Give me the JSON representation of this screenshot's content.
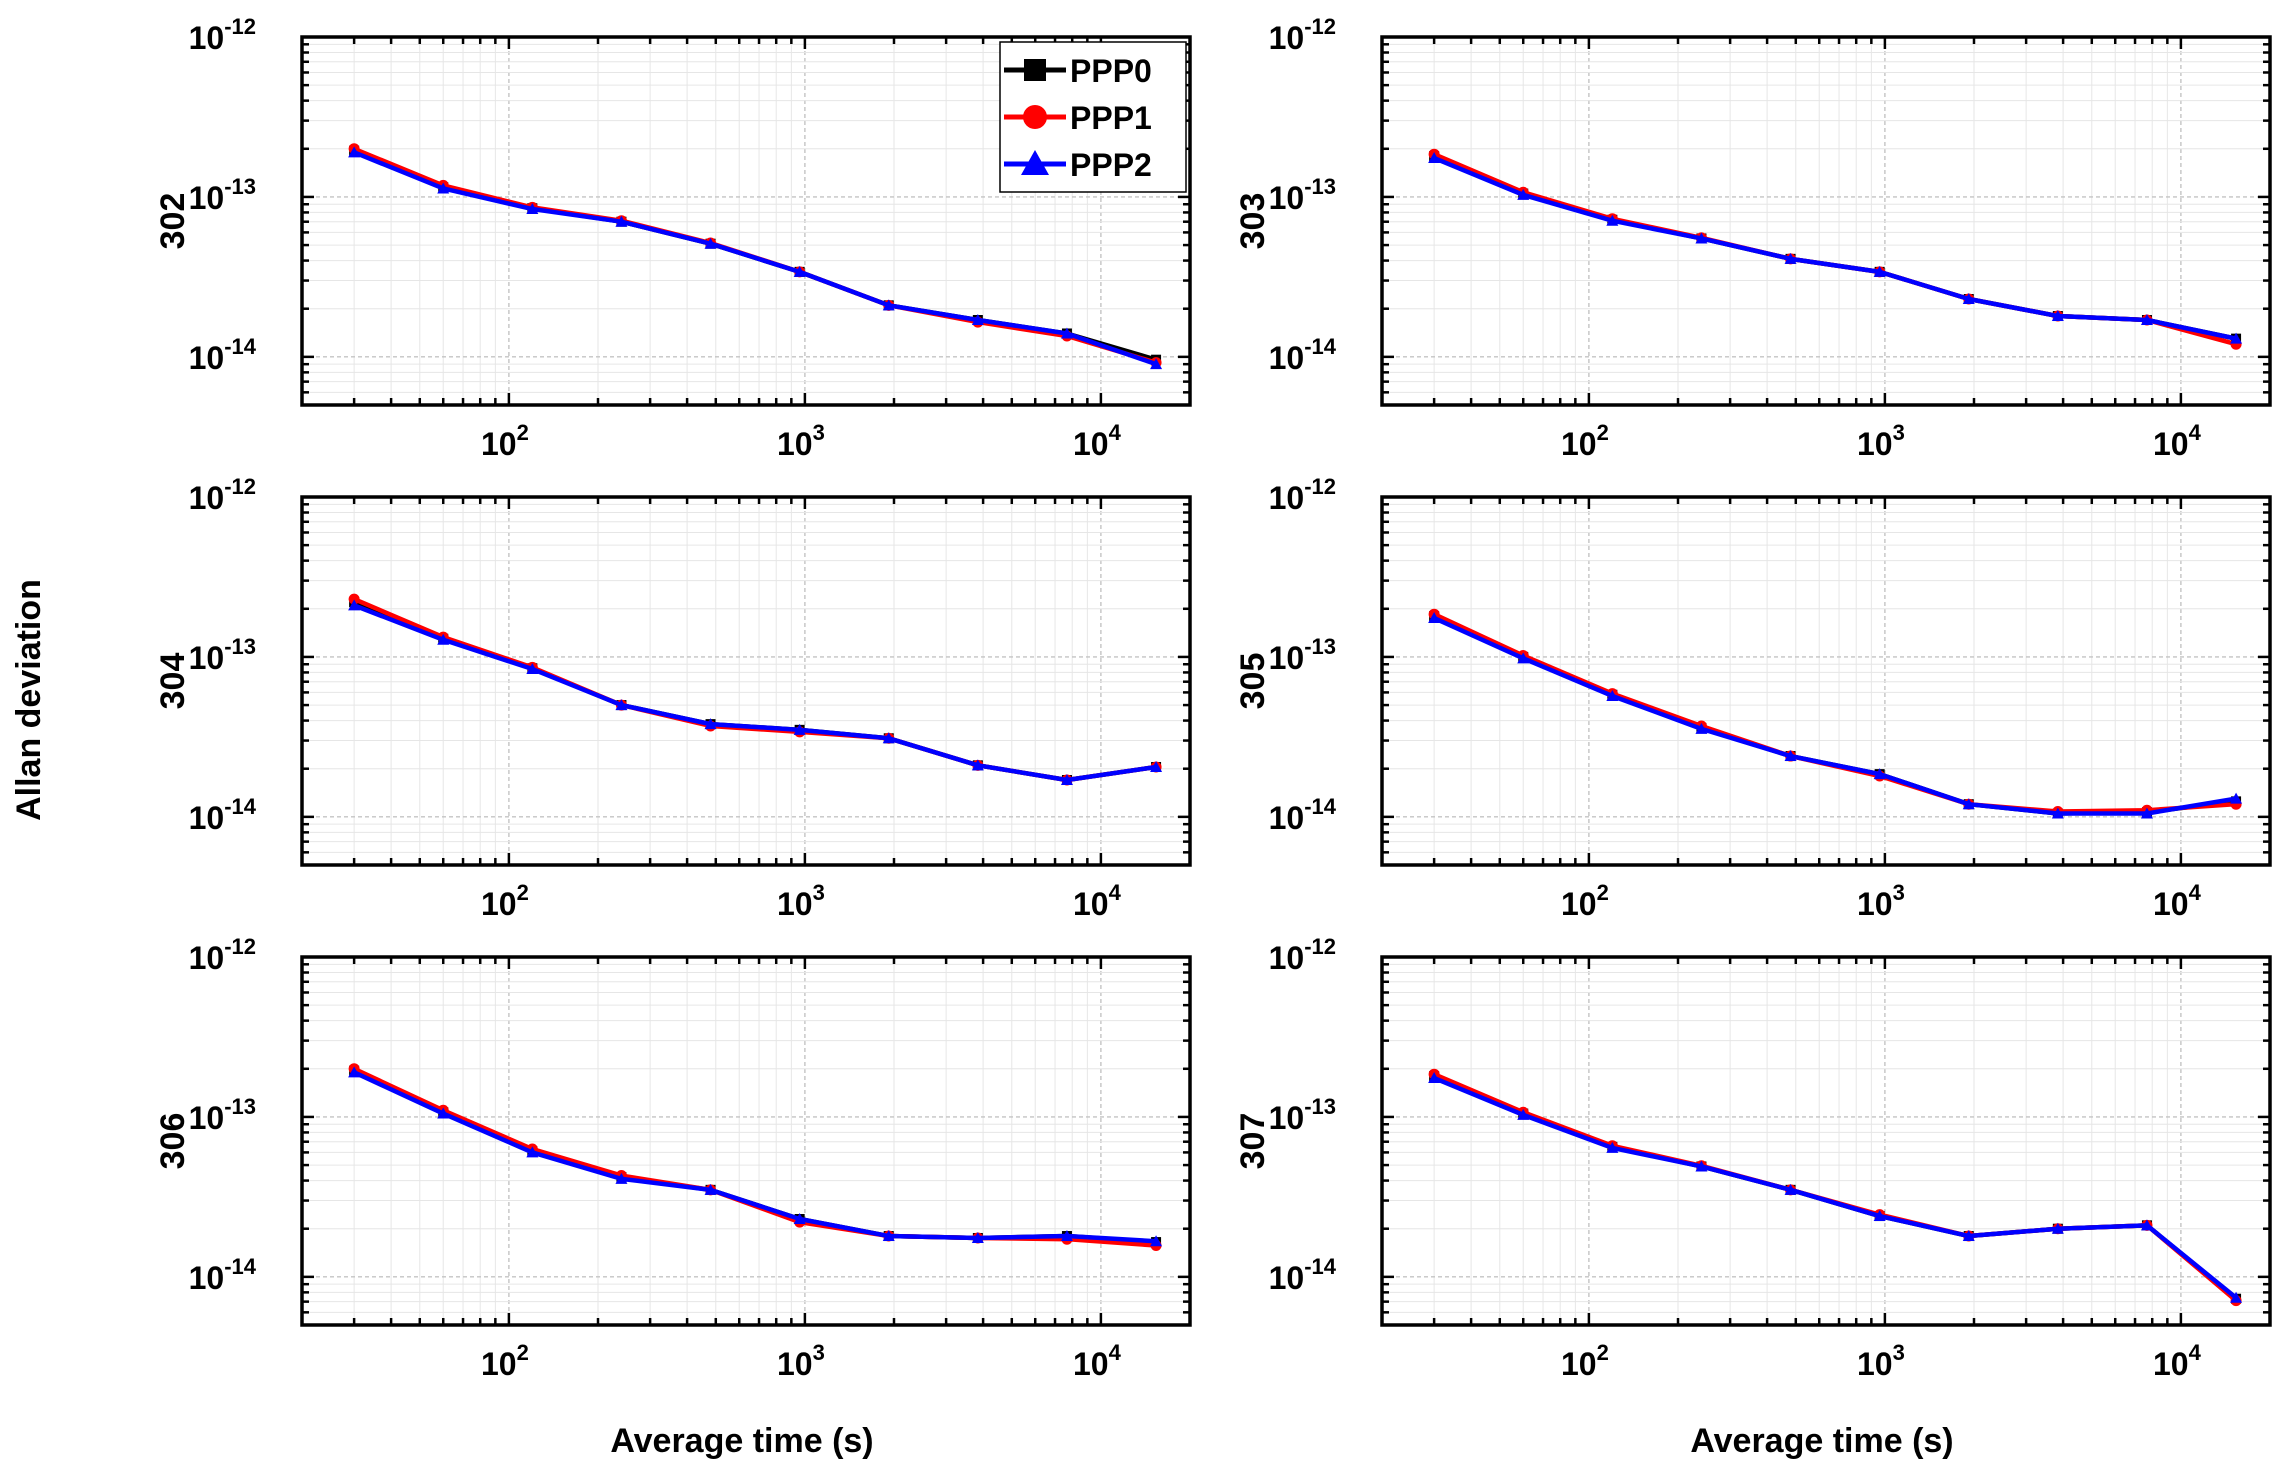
{
  "figure": {
    "shared_ylabel": "Allan deviation",
    "shared_xlabel": "Average time (s)"
  },
  "legend": [
    {
      "name": "PPP0",
      "color": "#000000",
      "marker": "square"
    },
    {
      "name": "PPP1",
      "color": "#ff0000",
      "marker": "circle"
    },
    {
      "name": "PPP2",
      "color": "#0000ff",
      "marker": "triangle"
    }
  ],
  "ytick_labels": [
    {
      "base": "10",
      "exp": "-12"
    },
    {
      "base": "10",
      "exp": "-13"
    },
    {
      "base": "10",
      "exp": "-14"
    }
  ],
  "xtick_labels": [
    {
      "base": "10",
      "exp": "2"
    },
    {
      "base": "10",
      "exp": "3"
    },
    {
      "base": "10",
      "exp": "4"
    }
  ],
  "chart_data": [
    {
      "type": "line",
      "title": "302",
      "ylabel": "302",
      "xlabel": "Average time (s)",
      "xscale": "log",
      "yscale": "log",
      "xlim": [
        20,
        20000
      ],
      "ylim": [
        5e-15,
        1e-12
      ],
      "grid": true,
      "legend": "top-right",
      "x": [
        30,
        60,
        120,
        240,
        480,
        960,
        1920,
        3840,
        7680,
        15360
      ],
      "series": [
        {
          "name": "PPP0",
          "values": [
            1.95e-13,
            1.15e-13,
            8.5e-14,
            7e-14,
            5.1e-14,
            3.4e-14,
            2.1e-14,
            1.7e-14,
            1.4e-14,
            9.6e-15
          ]
        },
        {
          "name": "PPP1",
          "values": [
            2e-13,
            1.18e-13,
            8.6e-14,
            7.1e-14,
            5.15e-14,
            3.4e-14,
            2.1e-14,
            1.65e-14,
            1.35e-14,
            9.2e-15
          ]
        },
        {
          "name": "PPP2",
          "values": [
            1.9e-13,
            1.13e-13,
            8.4e-14,
            7e-14,
            5.1e-14,
            3.4e-14,
            2.1e-14,
            1.7e-14,
            1.4e-14,
            9e-15
          ]
        }
      ]
    },
    {
      "type": "line",
      "title": "303",
      "ylabel": "303",
      "xlabel": "Average time (s)",
      "xscale": "log",
      "yscale": "log",
      "xlim": [
        20,
        20000
      ],
      "ylim": [
        5e-15,
        1e-12
      ],
      "grid": true,
      "x": [
        30,
        60,
        120,
        240,
        480,
        960,
        1920,
        3840,
        7680,
        15360
      ],
      "series": [
        {
          "name": "PPP0",
          "values": [
            1.8e-13,
            1.05e-13,
            7.2e-14,
            5.5e-14,
            4.1e-14,
            3.4e-14,
            2.3e-14,
            1.8e-14,
            1.7e-14,
            1.3e-14
          ]
        },
        {
          "name": "PPP1",
          "values": [
            1.85e-13,
            1.07e-13,
            7.3e-14,
            5.55e-14,
            4.1e-14,
            3.4e-14,
            2.3e-14,
            1.8e-14,
            1.7e-14,
            1.2e-14
          ]
        },
        {
          "name": "PPP2",
          "values": [
            1.75e-13,
            1.03e-13,
            7.1e-14,
            5.5e-14,
            4.1e-14,
            3.4e-14,
            2.3e-14,
            1.8e-14,
            1.7e-14,
            1.3e-14
          ]
        }
      ]
    },
    {
      "type": "line",
      "title": "304",
      "ylabel": "304",
      "xlabel": "Average time (s)",
      "xscale": "log",
      "yscale": "log",
      "xlim": [
        20,
        20000
      ],
      "ylim": [
        5e-15,
        1e-12
      ],
      "grid": true,
      "x": [
        30,
        60,
        120,
        240,
        480,
        960,
        1920,
        3840,
        7680,
        15360
      ],
      "series": [
        {
          "name": "PPP0",
          "values": [
            2.2e-13,
            1.3e-13,
            8.5e-14,
            5e-14,
            3.8e-14,
            3.5e-14,
            3.1e-14,
            2.1e-14,
            1.7e-14,
            2.05e-14
          ]
        },
        {
          "name": "PPP1",
          "values": [
            2.3e-13,
            1.33e-13,
            8.6e-14,
            5e-14,
            3.7e-14,
            3.4e-14,
            3.1e-14,
            2.1e-14,
            1.7e-14,
            2.05e-14
          ]
        },
        {
          "name": "PPP2",
          "values": [
            2.1e-13,
            1.28e-13,
            8.4e-14,
            5e-14,
            3.8e-14,
            3.5e-14,
            3.1e-14,
            2.1e-14,
            1.7e-14,
            2.05e-14
          ]
        }
      ]
    },
    {
      "type": "line",
      "title": "305",
      "ylabel": "305",
      "xlabel": "Average time (s)",
      "xscale": "log",
      "yscale": "log",
      "xlim": [
        20,
        20000
      ],
      "ylim": [
        5e-15,
        1e-12
      ],
      "grid": true,
      "x": [
        30,
        60,
        120,
        240,
        480,
        960,
        1920,
        3840,
        7680,
        15360
      ],
      "series": [
        {
          "name": "PPP0",
          "values": [
            1.8e-13,
            1e-13,
            5.8e-14,
            3.6e-14,
            2.4e-14,
            1.85e-14,
            1.2e-14,
            1.05e-14,
            1.07e-14,
            1.25e-14
          ]
        },
        {
          "name": "PPP1",
          "values": [
            1.85e-13,
            1.02e-13,
            5.9e-14,
            3.7e-14,
            2.4e-14,
            1.8e-14,
            1.2e-14,
            1.08e-14,
            1.1e-14,
            1.2e-14
          ]
        },
        {
          "name": "PPP2",
          "values": [
            1.75e-13,
            9.8e-14,
            5.7e-14,
            3.55e-14,
            2.4e-14,
            1.85e-14,
            1.2e-14,
            1.05e-14,
            1.05e-14,
            1.3e-14
          ]
        }
      ]
    },
    {
      "type": "line",
      "title": "306",
      "ylabel": "306",
      "xlabel": "Average time (s)",
      "xscale": "log",
      "yscale": "log",
      "xlim": [
        20,
        20000
      ],
      "ylim": [
        5e-15,
        1e-12
      ],
      "grid": true,
      "x": [
        30,
        60,
        120,
        240,
        480,
        960,
        1920,
        3840,
        7680,
        15360
      ],
      "series": [
        {
          "name": "PPP0",
          "values": [
            1.95e-13,
            1.07e-13,
            6.1e-14,
            4.2e-14,
            3.5e-14,
            2.3e-14,
            1.8e-14,
            1.75e-14,
            1.8e-14,
            1.65e-14
          ]
        },
        {
          "name": "PPP1",
          "values": [
            2e-13,
            1.1e-13,
            6.3e-14,
            4.3e-14,
            3.5e-14,
            2.2e-14,
            1.8e-14,
            1.75e-14,
            1.72e-14,
            1.57e-14
          ]
        },
        {
          "name": "PPP2",
          "values": [
            1.9e-13,
            1.05e-13,
            6e-14,
            4.1e-14,
            3.5e-14,
            2.3e-14,
            1.8e-14,
            1.75e-14,
            1.8e-14,
            1.67e-14
          ]
        }
      ]
    },
    {
      "type": "line",
      "title": "307",
      "ylabel": "307",
      "xlabel": "Average time (s)",
      "xscale": "log",
      "yscale": "log",
      "xlim": [
        20,
        20000
      ],
      "ylim": [
        5e-15,
        1e-12
      ],
      "grid": true,
      "x": [
        30,
        60,
        120,
        240,
        480,
        960,
        1920,
        3840,
        7680,
        15360
      ],
      "series": [
        {
          "name": "PPP0",
          "values": [
            1.8e-13,
            1.05e-13,
            6.5e-14,
            4.9e-14,
            3.5e-14,
            2.4e-14,
            1.8e-14,
            2e-14,
            2.1e-14,
            7.3e-15
          ]
        },
        {
          "name": "PPP1",
          "values": [
            1.85e-13,
            1.07e-13,
            6.6e-14,
            4.95e-14,
            3.5e-14,
            2.45e-14,
            1.8e-14,
            2e-14,
            2.1e-14,
            7.1e-15
          ]
        },
        {
          "name": "PPP2",
          "values": [
            1.75e-13,
            1.03e-13,
            6.4e-14,
            4.9e-14,
            3.5e-14,
            2.4e-14,
            1.8e-14,
            2e-14,
            2.1e-14,
            7.4e-15
          ]
        }
      ]
    }
  ]
}
